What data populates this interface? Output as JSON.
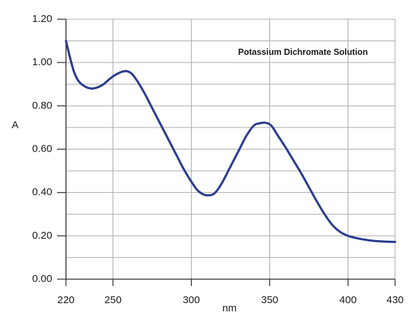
{
  "chart_data": {
    "type": "line",
    "title": "Potassium Dichromate Solution",
    "xlabel": "nm",
    "ylabel": "A",
    "xlim": [
      220,
      430
    ],
    "ylim": [
      0,
      1.2
    ],
    "x_ticks": [
      220,
      250,
      300,
      350,
      400,
      430
    ],
    "x_tick_labels": [
      "220",
      "250",
      "300",
      "350",
      "400",
      "430"
    ],
    "x_grid": [
      220,
      250,
      300,
      350,
      400,
      430
    ],
    "y_ticks": [
      0,
      0.2,
      0.4,
      0.6,
      0.8,
      1.0,
      1.2
    ],
    "y_tick_labels": [
      "0.00",
      "0.20",
      "0.40",
      "0.60",
      "0.80",
      "1.00",
      "1.20"
    ],
    "y_grid": [
      0,
      0.1,
      0.2,
      0.3,
      0.4,
      0.5,
      0.6,
      0.7,
      0.8,
      0.9,
      1.0,
      1.1,
      1.2
    ],
    "grid": true,
    "legend": "none",
    "series": [
      {
        "color": "#2b3d8f",
        "x": [
          220,
          222,
          225,
          228,
          232,
          236,
          240,
          244,
          248,
          252,
          256,
          259,
          262,
          265,
          270,
          275,
          280,
          285,
          290,
          295,
          300,
          304,
          308,
          311,
          314,
          317,
          320,
          325,
          330,
          335,
          340,
          344,
          347,
          350,
          352,
          355,
          360,
          365,
          370,
          375,
          380,
          385,
          390,
          395,
          400,
          405,
          410,
          415,
          420,
          425,
          430
        ],
        "y": [
          1.1,
          1.04,
          0.96,
          0.915,
          0.89,
          0.88,
          0.885,
          0.9,
          0.925,
          0.945,
          0.958,
          0.96,
          0.948,
          0.92,
          0.86,
          0.79,
          0.72,
          0.65,
          0.58,
          0.51,
          0.45,
          0.41,
          0.39,
          0.387,
          0.392,
          0.415,
          0.45,
          0.52,
          0.59,
          0.66,
          0.71,
          0.72,
          0.722,
          0.715,
          0.7,
          0.665,
          0.61,
          0.55,
          0.49,
          0.425,
          0.36,
          0.3,
          0.25,
          0.218,
          0.2,
          0.19,
          0.183,
          0.178,
          0.175,
          0.173,
          0.172
        ]
      }
    ]
  }
}
